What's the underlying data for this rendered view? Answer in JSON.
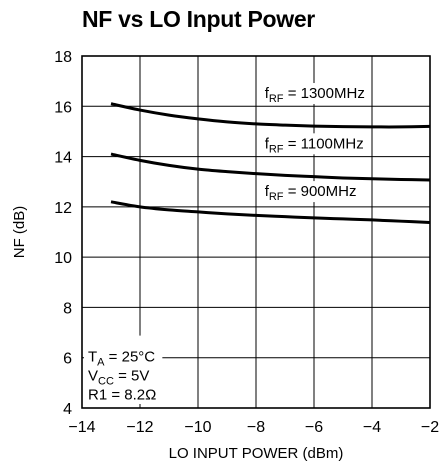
{
  "chart_data": {
    "type": "line",
    "title": "NF vs LO Input Power",
    "xlabel": "LO INPUT POWER (dBm)",
    "ylabel": "NF (dB)",
    "xlim": [
      -14,
      -2
    ],
    "ylim": [
      4,
      18
    ],
    "x_ticks": [
      -14,
      -12,
      -10,
      -8,
      -6,
      -4,
      -2
    ],
    "x_tick_labels": [
      "−14",
      "−12",
      "−10",
      "−8",
      "−6",
      "−4",
      "−2"
    ],
    "y_ticks": [
      4,
      6,
      8,
      10,
      12,
      14,
      16,
      18
    ],
    "y_tick_labels": [
      "4",
      "6",
      "8",
      "10",
      "12",
      "14",
      "16",
      "18"
    ],
    "grid": true,
    "series": [
      {
        "name": "f_RF = 1300MHz",
        "label_main": "f",
        "label_sub": "RF",
        "label_rest": " = 1300MHz",
        "x": [
          -13,
          -12,
          -11,
          -10,
          -9,
          -8,
          -7,
          -6,
          -5,
          -4,
          -3,
          -2
        ],
        "y": [
          16.1,
          15.85,
          15.65,
          15.5,
          15.38,
          15.3,
          15.25,
          15.21,
          15.19,
          15.18,
          15.18,
          15.2
        ]
      },
      {
        "name": "f_RF = 1100MHz",
        "label_main": "f",
        "label_sub": "RF",
        "label_rest": " = 1100MHz",
        "x": [
          -13,
          -12,
          -11,
          -10,
          -9,
          -8,
          -7,
          -6,
          -5,
          -4,
          -3,
          -2
        ],
        "y": [
          14.1,
          13.85,
          13.65,
          13.5,
          13.4,
          13.32,
          13.25,
          13.2,
          13.15,
          13.12,
          13.09,
          13.07
        ]
      },
      {
        "name": "f_RF = 900MHz",
        "label_main": "f",
        "label_sub": "RF",
        "label_rest": " = 900MHz",
        "x": [
          -13,
          -12,
          -11,
          -10,
          -9,
          -8,
          -7,
          -6,
          -5,
          -4,
          -3,
          -2
        ],
        "y": [
          12.2,
          12.0,
          11.88,
          11.8,
          11.72,
          11.66,
          11.61,
          11.56,
          11.52,
          11.48,
          11.43,
          11.38
        ]
      }
    ],
    "conditions": {
      "line1_main": "T",
      "line1_sub": "A",
      "line1_rest": " = 25°C",
      "line2_main": "V",
      "line2_sub": "CC",
      "line2_rest": " = 5V",
      "line3": "R1 = 8.2Ω"
    },
    "colors": {
      "line": "#000000",
      "grid": "#000000",
      "background": "#ffffff"
    }
  }
}
